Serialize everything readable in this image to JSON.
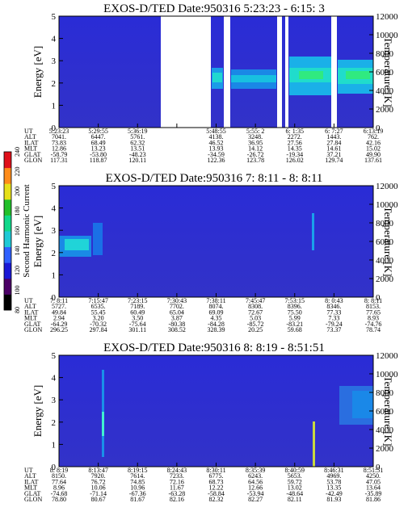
{
  "figure": {
    "colorbar": {
      "label": "Second Harmonic Current",
      "ticks": [
        "80",
        "100",
        "120",
        "140",
        "160",
        "180",
        "200",
        "220",
        "240"
      ],
      "colors": [
        "#000000",
        "#4b0066",
        "#1a18d6",
        "#2f60ff",
        "#1ec9d6",
        "#10d88a",
        "#22c02a",
        "#e6e01a",
        "#ff8c1a",
        "#e0101a"
      ]
    },
    "row_labels": [
      "UT",
      "ALT",
      "ILAT",
      "MLT",
      "GLAT",
      "GLON"
    ]
  },
  "chart_data": [
    {
      "type": "heatmap",
      "title": "EXOS-D/TED   Date:950316  5:23:23 - 6:15: 3",
      "ylabel": "Energy [eV]",
      "y2label": "Temperature [K]",
      "ylim": [
        0,
        5
      ],
      "y2lim": [
        0,
        12000
      ],
      "yticks": [
        "0",
        "1",
        "2",
        "3",
        "4",
        "5"
      ],
      "y2ticks": [
        "0",
        "2000",
        "4000",
        "6000",
        "8000",
        "10000",
        "12000"
      ],
      "data_gaps": [
        {
          "start": "5:36:19",
          "end": "5:48:55"
        }
      ],
      "table": {
        "UT": [
          "5:23:23",
          "5:29:55",
          "5:36:19",
          "",
          "5:48:55",
          "5:55: 2",
          "6: 1:35",
          "6: 7:27",
          "6:13:19"
        ],
        "ALT": [
          "7041.",
          "6447.",
          "5761.",
          "",
          "4138.",
          "3248.",
          "2272.",
          "1443.",
          "762."
        ],
        "ILAT": [
          "73.83",
          "68.49",
          "62.32",
          "",
          "46.52",
          "36.95",
          "27.56",
          "27.84",
          "42.16"
        ],
        "MLT": [
          "12.86",
          "13.23",
          "13.51",
          "",
          "13.93",
          "14.12",
          "14.35",
          "14.61",
          "15.02"
        ],
        "GLAT": [
          "-58.79",
          "-53.80",
          "-48.23",
          "",
          "-34.59",
          "-26.72",
          "-19.34",
          "37.21",
          "49.90"
        ],
        "GLON": [
          "117.31",
          "118.87",
          "120.11",
          "",
          "122.36",
          "123.78",
          "126.02",
          "129.74",
          "137.61"
        ]
      }
    },
    {
      "type": "heatmap",
      "title": "EXOS-D/TED   Date:950316  7: 8:11 - 8: 8:11",
      "ylabel": "Energy [eV]",
      "y2label": "Temperature [K]",
      "ylim": [
        0,
        5
      ],
      "y2lim": [
        0,
        12000
      ],
      "yticks": [
        "0",
        "1",
        "2",
        "3",
        "4",
        "5"
      ],
      "y2ticks": [
        "0",
        "2000",
        "4000",
        "6000",
        "8000",
        "10000",
        "12000"
      ],
      "table": {
        "UT": [
          "7: 8:11",
          "7:15:47",
          "7:23:15",
          "7:30:43",
          "7:38:11",
          "7:45:47",
          "7:53:15",
          "8: 0:43",
          "8: 8:11"
        ],
        "ALT": [
          "5727.",
          "6535.",
          "7189.",
          "7702.",
          "8074.",
          "8308.",
          "8396.",
          "8346.",
          "8153."
        ],
        "ILAT": [
          "49.84",
          "55.45",
          "60.49",
          "65.04",
          "69.09",
          "72.67",
          "75.50",
          "77.33",
          "77.65"
        ],
        "MLT": [
          "2.94",
          "3.20",
          "3.50",
          "3.87",
          "4.35",
          "5.03",
          "5.99",
          "7.33",
          "8.93"
        ],
        "GLAT": [
          "-64.29",
          "-70.32",
          "-75.64",
          "-80.38",
          "-84.28",
          "-85.72",
          "-83.21",
          "-79.24",
          "-74.76"
        ],
        "GLON": [
          "296.25",
          "297.84",
          "301.11",
          "308.52",
          "328.39",
          "20.25",
          "59.68",
          "73.37",
          "78.74"
        ]
      }
    },
    {
      "type": "heatmap",
      "title": "EXOS-D/TED   Date:950316  8: 8:19 - 8:51:51",
      "ylabel": "Energy [eV]",
      "y2label": "Temperature [K]",
      "ylim": [
        0,
        5
      ],
      "y2lim": [
        0,
        12000
      ],
      "yticks": [
        "0",
        "1",
        "2",
        "3",
        "4",
        "5"
      ],
      "y2ticks": [
        "0",
        "2000",
        "4000",
        "6000",
        "8000",
        "10000",
        "12000"
      ],
      "table": {
        "UT": [
          "8: 8:19",
          "8:13:47",
          "8:19:15",
          "8:24:43",
          "8:30:11",
          "8:35:39",
          "8:40:59",
          "8:46:31",
          "8:51:51"
        ],
        "ALT": [
          "8150.",
          "7920.",
          "7614.",
          "7233.",
          "6775.",
          "6243.",
          "5653.",
          "4969.",
          "4250."
        ],
        "ILAT": [
          "77.64",
          "76.72",
          "74.85",
          "72.16",
          "68.73",
          "64.56",
          "59.72",
          "53.78",
          "47.05"
        ],
        "MLT": [
          "8.96",
          "10.06",
          "10.96",
          "11.67",
          "12.22",
          "12.66",
          "13.02",
          "13.35",
          "13.64"
        ],
        "GLAT": [
          "-74.68",
          "-71.14",
          "-67.36",
          "-63.28",
          "-58.84",
          "-53.94",
          "-48.64",
          "-42.49",
          "-35.89"
        ],
        "GLON": [
          "78.80",
          "80.67",
          "81.67",
          "82.16",
          "82.32",
          "82.27",
          "82.11",
          "81.93",
          "81.86"
        ]
      }
    }
  ]
}
